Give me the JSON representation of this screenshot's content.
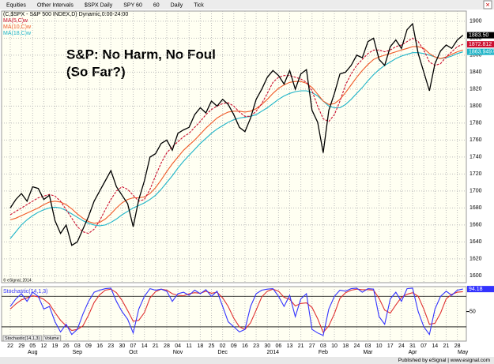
{
  "toolbar": [
    "Equities",
    "Other Intervals",
    "$SPX Daily",
    "SPY 60",
    "60",
    "Daily",
    "Tick"
  ],
  "annotation": [
    "S&P: No Harm, No Foul",
    "(So Far?)"
  ],
  "copyright": "© eSignal, 2014",
  "tabs": [
    "Stochastic(14,1,3)",
    "Volume"
  ],
  "footer": "Published by eSignal | www.esignal.com",
  "chart_data": [
    {
      "type": "line",
      "categories": [
        "22",
        null,
        "29",
        null,
        "05",
        null,
        "12",
        null,
        "19",
        null,
        "26",
        null,
        "03",
        null,
        "09",
        null,
        "16",
        null,
        "23",
        null,
        "30",
        null,
        "07",
        null,
        "14",
        null,
        "21",
        null,
        "28",
        null,
        "04",
        null,
        "11",
        null,
        "18",
        null,
        "25",
        null,
        "02",
        null,
        "09",
        null,
        "16",
        null,
        "23",
        null,
        "30",
        null,
        "06",
        null,
        "13",
        null,
        "21",
        null,
        "27",
        null,
        "03",
        null,
        "10",
        null,
        "18",
        null,
        "24",
        null,
        "03",
        null,
        "10",
        null,
        "17",
        null,
        "24",
        null,
        "31",
        null,
        "07",
        null,
        "14",
        null,
        "21",
        null,
        "28",
        null
      ],
      "months": [
        null,
        null,
        null,
        null,
        "Aug",
        null,
        null,
        null,
        null,
        null,
        null,
        null,
        "Sep",
        null,
        null,
        null,
        null,
        null,
        null,
        null,
        null,
        null,
        "Oct",
        null,
        null,
        null,
        null,
        null,
        null,
        null,
        "Nov",
        null,
        null,
        null,
        null,
        null,
        null,
        null,
        "Dec",
        null,
        null,
        null,
        null,
        null,
        null,
        null,
        null,
        "2014",
        null,
        null,
        null,
        null,
        null,
        null,
        null,
        null,
        "Feb",
        null,
        null,
        null,
        null,
        null,
        null,
        null,
        "Mar",
        null,
        null,
        null,
        null,
        null,
        null,
        null,
        "Apr",
        null,
        null,
        null,
        null,
        null,
        null,
        null,
        null,
        "May"
      ],
      "series": [
        {
          "name": "(C,$SPX - S&P 500 INDEX,D) Dynamic,0:00-24:00",
          "color": "#000000",
          "last_label": "1883.50",
          "values": [
            1680,
            1690,
            1697,
            1688,
            1705,
            1703,
            1690,
            1695,
            1665,
            1650,
            1660,
            1636,
            1640,
            1655,
            1670,
            1688,
            1700,
            1712,
            1724,
            1705,
            1695,
            1685,
            1658,
            1690,
            1712,
            1740,
            1744,
            1756,
            1760,
            1748,
            1768,
            1772,
            1775,
            1790,
            1798,
            1792,
            1806,
            1800,
            1808,
            1802,
            1790,
            1775,
            1770,
            1786,
            1808,
            1820,
            1834,
            1842,
            1836,
            1826,
            1842,
            1820,
            1838,
            1843,
            1795,
            1781,
            1745,
            1795,
            1815,
            1838,
            1840,
            1848,
            1860,
            1857,
            1876,
            1880,
            1855,
            1848,
            1870,
            1878,
            1868,
            1890,
            1897,
            1862,
            1840,
            1818,
            1850,
            1865,
            1872,
            1868,
            1878,
            1883.5
          ]
        },
        {
          "name": "MA(5,C)w",
          "color": "#cc1030",
          "dash": true,
          "last_label": "1872.812",
          "values": [
            1672,
            1676,
            1680,
            1684,
            1688,
            1692,
            1694,
            1696,
            1694,
            1688,
            1678,
            1668,
            1658,
            1652,
            1650,
            1655,
            1665,
            1678,
            1690,
            1700,
            1705,
            1702,
            1695,
            1688,
            1690,
            1702,
            1718,
            1733,
            1745,
            1752,
            1758,
            1764,
            1768,
            1775,
            1782,
            1790,
            1796,
            1800,
            1803,
            1804,
            1800,
            1793,
            1788,
            1788,
            1794,
            1803,
            1815,
            1828,
            1834,
            1836,
            1836,
            1834,
            1832,
            1828,
            1818,
            1800,
            1785,
            1782,
            1790,
            1806,
            1825,
            1838,
            1848,
            1855,
            1862,
            1866,
            1866,
            1864,
            1866,
            1870,
            1872,
            1876,
            1880,
            1876,
            1866,
            1852,
            1848,
            1850,
            1858,
            1864,
            1870,
            1872.812
          ]
        },
        {
          "name": "MA(10,C)w",
          "color": "#f05a28",
          "values": [
            1666,
            1668,
            1671,
            1674,
            1677,
            1680,
            1684,
            1687,
            1688,
            1687,
            1684,
            1679,
            1673,
            1668,
            1664,
            1662,
            1663,
            1667,
            1673,
            1680,
            1686,
            1690,
            1692,
            1692,
            1693,
            1697,
            1704,
            1713,
            1723,
            1732,
            1740,
            1748,
            1754,
            1760,
            1767,
            1774,
            1780,
            1786,
            1790,
            1793,
            1794,
            1794,
            1793,
            1794,
            1797,
            1802,
            1808,
            1815,
            1821,
            1825,
            1828,
            1829,
            1829,
            1827,
            1822,
            1814,
            1806,
            1802,
            1803,
            1808,
            1816,
            1825,
            1834,
            1842,
            1849,
            1855,
            1858,
            1860,
            1862,
            1864,
            1866,
            1868,
            1870,
            1870,
            1868,
            1862,
            1858,
            1856,
            1858,
            1861,
            1864,
            1866
          ]
        },
        {
          "name": "MA(18,C)w",
          "color": "#1eb4c8",
          "last_label": "1863.9497",
          "values": [
            1644,
            1652,
            1660,
            1666,
            1671,
            1675,
            1678,
            1680,
            1681,
            1680,
            1677,
            1673,
            1669,
            1665,
            1662,
            1660,
            1659,
            1660,
            1663,
            1667,
            1672,
            1676,
            1680,
            1683,
            1686,
            1690,
            1695,
            1702,
            1710,
            1718,
            1727,
            1735,
            1742,
            1749,
            1756,
            1762,
            1768,
            1773,
            1777,
            1781,
            1784,
            1786,
            1787,
            1788,
            1790,
            1794,
            1798,
            1803,
            1808,
            1812,
            1815,
            1817,
            1818,
            1818,
            1816,
            1812,
            1806,
            1800,
            1798,
            1798,
            1802,
            1808,
            1815,
            1822,
            1830,
            1837,
            1843,
            1848,
            1852,
            1856,
            1859,
            1861,
            1863,
            1863,
            1862,
            1860,
            1858,
            1856,
            1857,
            1859,
            1862,
            1863.9497
          ]
        }
      ],
      "ylim": [
        1592,
        1912
      ],
      "yticks": [
        1600,
        1620,
        1640,
        1660,
        1680,
        1700,
        1720,
        1740,
        1760,
        1780,
        1800,
        1820,
        1840,
        1860,
        1880,
        1900
      ],
      "grid": true
    },
    {
      "type": "line",
      "title": "Stochastic(14,1,3)",
      "series": [
        {
          "color": "#3333ff",
          "last_label": "94.18",
          "values": [
            60,
            75,
            85,
            70,
            88,
            80,
            55,
            60,
            30,
            10,
            25,
            5,
            15,
            45,
            70,
            88,
            92,
            95,
            96,
            70,
            50,
            35,
            8,
            55,
            80,
            95,
            92,
            94,
            90,
            70,
            85,
            88,
            82,
            92,
            85,
            93,
            80,
            90,
            60,
            30,
            20,
            10,
            15,
            60,
            85,
            92,
            94,
            95,
            80,
            60,
            82,
            40,
            75,
            85,
            15,
            8,
            3,
            55,
            80,
            92,
            90,
            95,
            96,
            88,
            95,
            94,
            40,
            25,
            75,
            88,
            70,
            95,
            96,
            50,
            20,
            5,
            55,
            80,
            90,
            82,
            92,
            94.18
          ]
        },
        {
          "color": "#e03030",
          "values": [
            55,
            65,
            73,
            77,
            81,
            79,
            74,
            65,
            48,
            33,
            22,
            13,
            15,
            22,
            43,
            68,
            83,
            92,
            94,
            87,
            72,
            52,
            31,
            33,
            48,
            77,
            89,
            94,
            92,
            85,
            82,
            81,
            85,
            87,
            86,
            90,
            86,
            88,
            77,
            60,
            37,
            20,
            15,
            28,
            53,
            79,
            90,
            94,
            90,
            78,
            74,
            61,
            66,
            67,
            58,
            36,
            9,
            22,
            46,
            76,
            87,
            92,
            94,
            93,
            93,
            92,
            76,
            53,
            47,
            63,
            78,
            84,
            87,
            80,
            55,
            25,
            27,
            47,
            75,
            84,
            88,
            89
          ]
        }
      ],
      "ylim": [
        -8,
        99
      ],
      "yticks": [
        50
      ],
      "levels": [
        80,
        20
      ]
    }
  ]
}
